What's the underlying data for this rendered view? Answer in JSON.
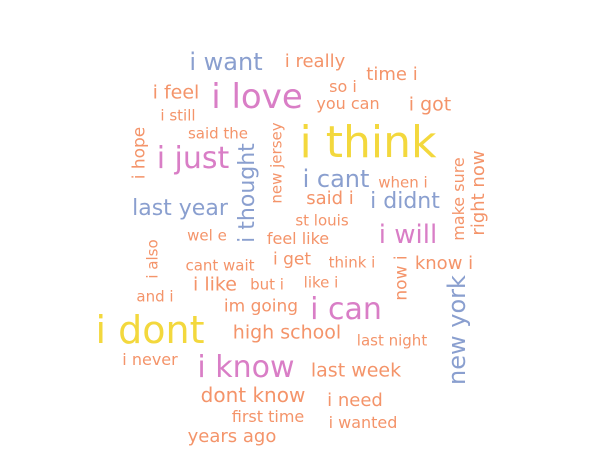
{
  "colors": {
    "orange": "#f4946a",
    "pink": "#d97ec6",
    "blue": "#8a9fcf",
    "yellow": "#f3d83d"
  },
  "words": [
    {
      "text": "i think",
      "color": "yellow",
      "rank": 1
    },
    {
      "text": "i dont",
      "color": "yellow",
      "rank": 2
    },
    {
      "text": "i love",
      "color": "pink",
      "rank": 3
    },
    {
      "text": "i know",
      "color": "pink",
      "rank": 4
    },
    {
      "text": "i just",
      "color": "pink",
      "rank": 5
    },
    {
      "text": "i can",
      "color": "pink",
      "rank": 6
    },
    {
      "text": "i want",
      "color": "blue",
      "rank": 7
    },
    {
      "text": "new york",
      "color": "blue",
      "rank": 8
    },
    {
      "text": "last year",
      "color": "blue",
      "rank": 9
    },
    {
      "text": "i thought",
      "color": "blue",
      "rank": 10
    },
    {
      "text": "i cant",
      "color": "blue",
      "rank": 11
    },
    {
      "text": "i didnt",
      "color": "blue",
      "rank": 12
    },
    {
      "text": "i will",
      "color": "pink",
      "rank": 13
    },
    {
      "text": "dont know",
      "color": "orange",
      "rank": 14
    },
    {
      "text": "high school",
      "color": "orange",
      "rank": 15
    },
    {
      "text": "last week",
      "color": "orange",
      "rank": 16
    },
    {
      "text": "right now",
      "color": "orange",
      "rank": 17
    },
    {
      "text": "i feel",
      "color": "orange",
      "rank": 18
    },
    {
      "text": "i really",
      "color": "orange",
      "rank": 19
    },
    {
      "text": "time i",
      "color": "orange",
      "rank": 20
    },
    {
      "text": "i got",
      "color": "orange",
      "rank": 21
    },
    {
      "text": "i hope",
      "color": "orange",
      "rank": 22
    },
    {
      "text": "said i",
      "color": "orange",
      "rank": 23
    },
    {
      "text": "i like",
      "color": "orange",
      "rank": 24
    },
    {
      "text": "i need",
      "color": "orange",
      "rank": 25
    },
    {
      "text": "years ago",
      "color": "orange",
      "rank": 26
    },
    {
      "text": "first time",
      "color": "orange",
      "rank": 27
    },
    {
      "text": "im going",
      "color": "orange",
      "rank": 28
    },
    {
      "text": "know i",
      "color": "orange",
      "rank": 29
    },
    {
      "text": "now i",
      "color": "orange",
      "rank": 30
    },
    {
      "text": "make sure",
      "color": "orange",
      "rank": 31
    },
    {
      "text": "new jersey",
      "color": "orange",
      "rank": 32
    },
    {
      "text": "feel like",
      "color": "orange",
      "rank": 33
    },
    {
      "text": "i get",
      "color": "orange",
      "rank": 34
    },
    {
      "text": "i still",
      "color": "orange",
      "rank": 35
    },
    {
      "text": "said the",
      "color": "orange",
      "rank": 36
    },
    {
      "text": "so i",
      "color": "orange",
      "rank": 37
    },
    {
      "text": "you can",
      "color": "orange",
      "rank": 38
    },
    {
      "text": "when i",
      "color": "orange",
      "rank": 39
    },
    {
      "text": "st louis",
      "color": "orange",
      "rank": 40
    },
    {
      "text": "wel e",
      "color": "orange",
      "rank": 41
    },
    {
      "text": "i also",
      "color": "orange",
      "rank": 42
    },
    {
      "text": "cant wait",
      "color": "orange",
      "rank": 43
    },
    {
      "text": "think i",
      "color": "orange",
      "rank": 44
    },
    {
      "text": "and i",
      "color": "orange",
      "rank": 45
    },
    {
      "text": "but i",
      "color": "orange",
      "rank": 46
    },
    {
      "text": "like i",
      "color": "orange",
      "rank": 47
    },
    {
      "text": "last night",
      "color": "orange",
      "rank": 48
    },
    {
      "text": "i never",
      "color": "orange",
      "rank": 49
    },
    {
      "text": "i wanted",
      "color": "orange",
      "rank": 50
    }
  ]
}
